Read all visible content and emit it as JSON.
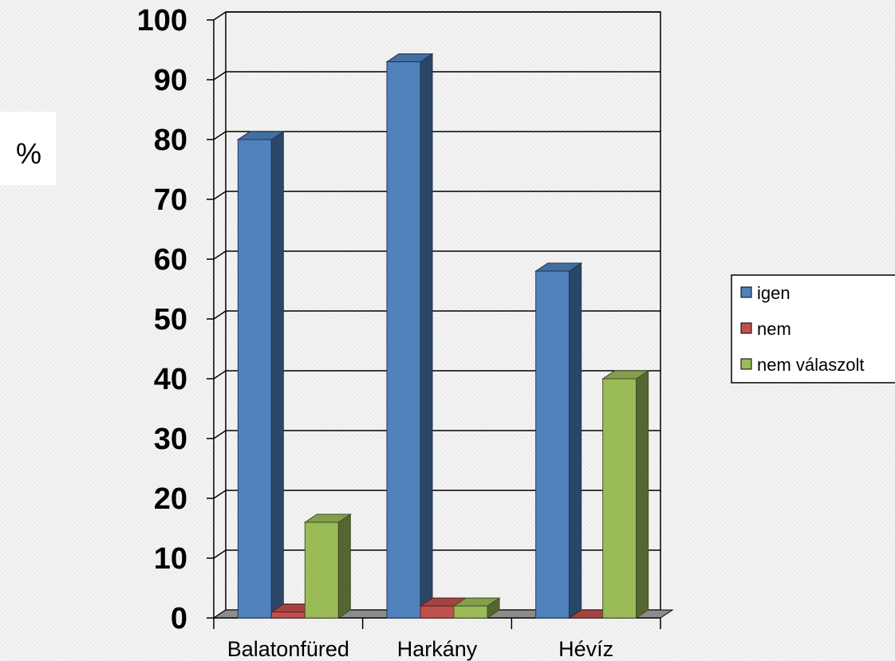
{
  "chart_data": {
    "type": "bar",
    "ylabel": "%",
    "categories": [
      "Balatonfüred",
      "Harkány",
      "Hévíz"
    ],
    "series": [
      {
        "name": "igen",
        "values": [
          80,
          93,
          58
        ],
        "color": "#4f81bd"
      },
      {
        "name": "nem",
        "values": [
          1,
          2,
          0
        ],
        "color": "#c0504d"
      },
      {
        "name": "nem válaszolt",
        "values": [
          16,
          2,
          40
        ],
        "color": "#9bbb59"
      }
    ],
    "ylim": [
      0,
      100
    ],
    "yticks": [
      "0",
      "10",
      "20",
      "30",
      "40",
      "50",
      "60",
      "70",
      "80",
      "90",
      "100"
    ],
    "grid": true,
    "legend_position": "right",
    "style": "3d-column"
  }
}
